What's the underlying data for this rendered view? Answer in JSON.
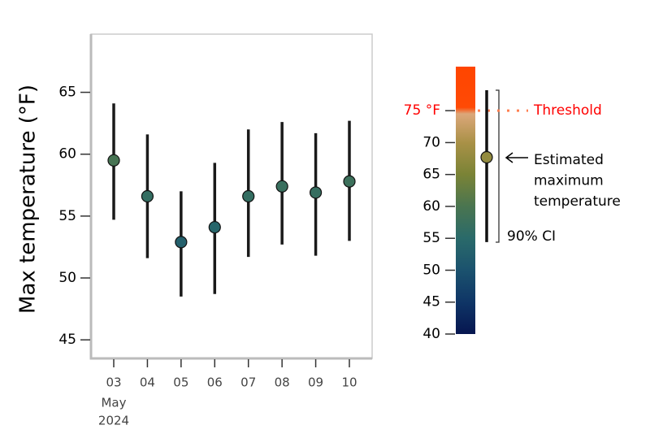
{
  "chart_data": {
    "type": "pointrange",
    "y_label": "Max temperature (°F)",
    "categories": [
      "03",
      "04",
      "05",
      "06",
      "07",
      "08",
      "09",
      "10"
    ],
    "x_sublabel": [
      "May",
      "2024"
    ],
    "values": [
      59.5,
      56.6,
      52.9,
      54.1,
      56.6,
      57.4,
      56.9,
      57.8
    ],
    "low": [
      54.7,
      51.6,
      48.5,
      48.7,
      51.7,
      52.7,
      51.8,
      53.0
    ],
    "high": [
      64.1,
      61.6,
      57.0,
      59.3,
      62.0,
      62.6,
      61.7,
      62.7
    ],
    "ylim": [
      43.5,
      69.7
    ],
    "yticks": [
      45,
      50,
      55,
      60,
      65
    ],
    "colorbar": {
      "lim": [
        40,
        81.9
      ],
      "ticks": [
        40,
        45,
        50,
        55,
        60,
        65,
        70
      ],
      "colorscale": [
        [
          40,
          "#061650"
        ],
        [
          45,
          "#0f3566"
        ],
        [
          50,
          "#1b526e"
        ],
        [
          55,
          "#2a6a6a"
        ],
        [
          60,
          "#4a7550"
        ],
        [
          65,
          "#7a8336"
        ],
        [
          70,
          "#a99147"
        ],
        [
          74.5,
          "#dca77a"
        ],
        [
          75.5,
          "#ff4a05"
        ],
        [
          81.9,
          "#ff4500"
        ]
      ]
    },
    "threshold": {
      "value": 75,
      "label": "75 °F",
      "text": "Threshold",
      "color": "#ff0000",
      "line_color": "#ff7f50"
    },
    "legend": {
      "value": 67.7,
      "low": 54.4,
      "high": 78.2,
      "point_text": [
        "Estimated",
        "maximum",
        "temperature"
      ],
      "ci_text": "90% CI"
    }
  }
}
